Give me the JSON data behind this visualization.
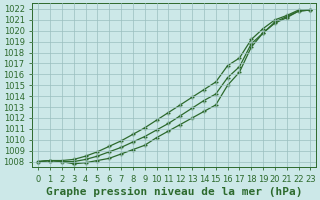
{
  "title": "Graphe pression niveau de la mer (hPa)",
  "x_hours": [
    0,
    1,
    2,
    3,
    4,
    5,
    6,
    7,
    8,
    9,
    10,
    11,
    12,
    13,
    14,
    15,
    16,
    17,
    18,
    19,
    20,
    21,
    22,
    23
  ],
  "line_upper": [
    1008.0,
    1008.1,
    1008.1,
    1008.2,
    1008.5,
    1008.9,
    1009.4,
    1009.9,
    1010.5,
    1011.1,
    1011.8,
    1012.5,
    1013.2,
    1013.9,
    1014.6,
    1015.3,
    1016.8,
    1017.5,
    1019.2,
    1020.2,
    1021.0,
    1021.4,
    1021.9,
    1021.9
  ],
  "line_mid": [
    1008.0,
    1008.1,
    1008.0,
    1008.0,
    1008.2,
    1008.5,
    1008.9,
    1009.3,
    1009.8,
    1010.3,
    1010.9,
    1011.5,
    1012.2,
    1012.9,
    1013.6,
    1014.2,
    1015.7,
    1016.7,
    1018.8,
    1019.8,
    1020.8,
    1021.3,
    1021.8,
    1021.9
  ],
  "line_lower": [
    1008.0,
    1008.1,
    1008.0,
    1007.8,
    1007.9,
    1008.1,
    1008.3,
    1008.7,
    1009.1,
    1009.5,
    1010.2,
    1010.8,
    1011.4,
    1012.0,
    1012.6,
    1013.2,
    1015.0,
    1016.2,
    1018.5,
    1019.8,
    1020.7,
    1021.2,
    1021.8,
    1021.9
  ],
  "ylim": [
    1007.5,
    1022.5
  ],
  "yticks": [
    1008,
    1009,
    1010,
    1011,
    1012,
    1013,
    1014,
    1015,
    1016,
    1017,
    1018,
    1019,
    1020,
    1021,
    1022
  ],
  "xlim": [
    -0.5,
    23.5
  ],
  "line_color": "#2d6a2d",
  "marker": "+",
  "bg_color": "#cce8e8",
  "grid_color": "#9bbfbf",
  "title_fontsize": 8.0,
  "tick_fontsize": 6.0
}
